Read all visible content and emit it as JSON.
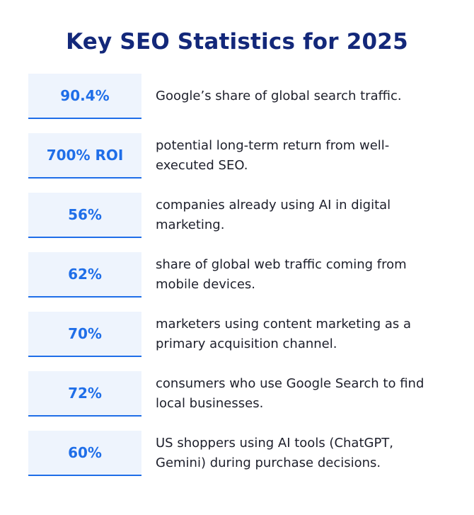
{
  "title": "Key SEO Statistics for 2025",
  "stats": [
    {
      "value": "90.4%",
      "description": "Google’s share of global search traffic."
    },
    {
      "value": "700% ROI",
      "description": "potential long-term return from well-executed SEO."
    },
    {
      "value": "56%",
      "description": "companies already using AI in digital marketing."
    },
    {
      "value": "62%",
      "description": "share of global web traffic coming from mobile devices."
    },
    {
      "value": "70%",
      "description": "marketers using content marketing as a primary acquisition channel."
    },
    {
      "value": "72%",
      "description": "consumers who use Google Search to find local businesses."
    },
    {
      "value": "60%",
      "description": "US shoppers using AI tools (ChatGPT, Gemini) during purchase decisions."
    }
  ],
  "colors": {
    "title": "#13287a",
    "accent": "#1f6ee8",
    "box_background": "#eef4fd",
    "text": "#1d1f2b"
  }
}
